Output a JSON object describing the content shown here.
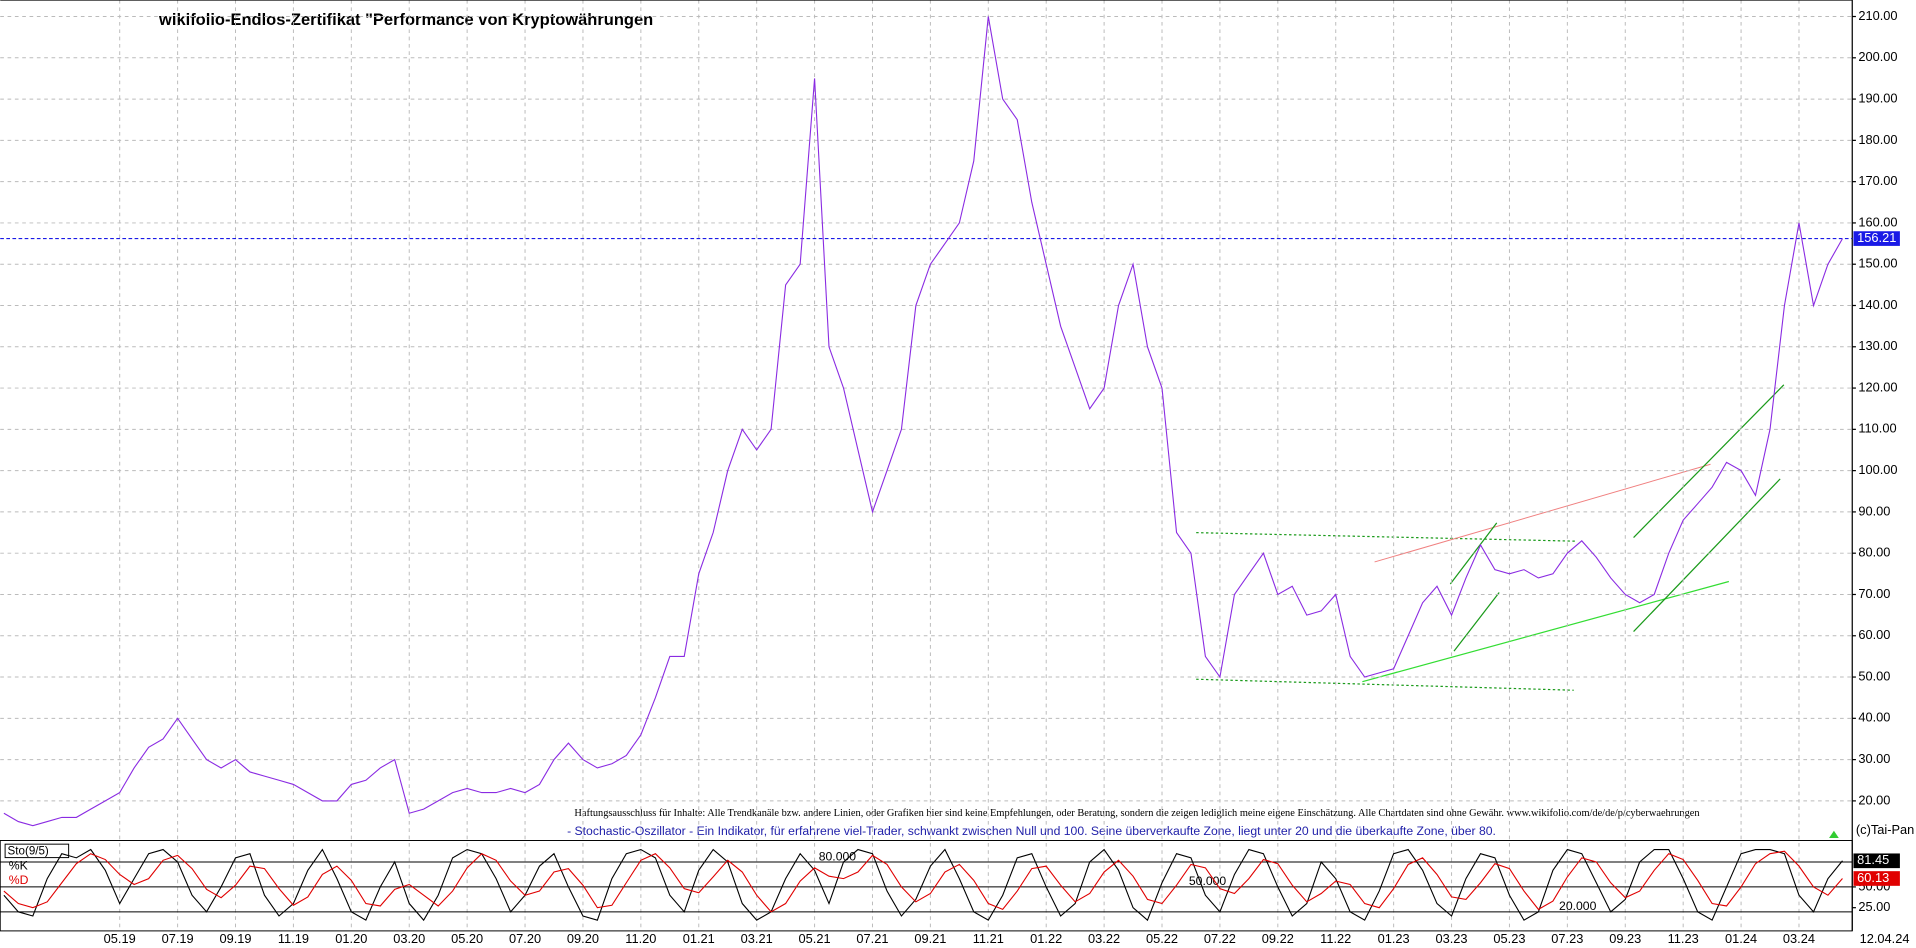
{
  "chart_data": [
    {
      "type": "line",
      "title": "wikifolio-Endlos-Zertifikat \"Performance von Kryptowährungen",
      "disclaimer": "Haftungsausschluss für Inhalte: Alle Trendkanäle bzw. andere Linien, oder Grafiken hier sind keine Empfehlungen, oder Beratung, sondern die zeigen lediglich meine eigene Einschätzung. Alle Chartdaten sind ohne Gewähr. www.wikifolio.com/de/de/p/cyberwaehrungen",
      "copyright": "(c)Tai-Pan",
      "last_date": "12.04.24",
      "categories": [
        null,
        null,
        null,
        null,
        null,
        null,
        null,
        null,
        "05.19",
        null,
        null,
        null,
        "07.19",
        null,
        null,
        null,
        "09.19",
        null,
        null,
        null,
        "11.19",
        null,
        null,
        null,
        "01.20",
        null,
        null,
        null,
        "03.20",
        null,
        null,
        null,
        "05.20",
        null,
        null,
        null,
        "07.20",
        null,
        null,
        null,
        "09.20",
        null,
        null,
        null,
        "11.20",
        null,
        null,
        null,
        "01.21",
        null,
        null,
        null,
        "03.21",
        null,
        null,
        null,
        "05.21",
        null,
        null,
        null,
        "07.21",
        null,
        null,
        null,
        "09.21",
        null,
        null,
        null,
        "11.21",
        null,
        null,
        null,
        "01.22",
        null,
        null,
        null,
        "03.22",
        null,
        null,
        null,
        "05.22",
        null,
        null,
        null,
        "07.22",
        null,
        null,
        null,
        "09.22",
        null,
        null,
        null,
        "11.22",
        null,
        null,
        null,
        "01.23",
        null,
        null,
        null,
        "03.23",
        null,
        null,
        null,
        "05.23",
        null,
        null,
        null,
        "07.23",
        null,
        null,
        null,
        "09.23",
        null,
        null,
        null,
        "11.23",
        null,
        null,
        null,
        "01.24",
        null,
        null,
        null,
        "03.24",
        null,
        null,
        null
      ],
      "series": [
        {
          "color": "#8a2be2",
          "values": [
            17,
            15,
            14,
            15,
            16,
            16,
            18,
            20,
            22,
            28,
            33,
            35,
            40,
            35,
            30,
            28,
            30,
            27,
            26,
            25,
            24,
            22,
            20,
            20,
            24,
            25,
            28,
            30,
            17,
            18,
            20,
            22,
            23,
            22,
            22,
            23,
            22,
            24,
            30,
            34,
            30,
            28,
            29,
            31,
            36,
            45,
            55,
            55,
            75,
            85,
            100,
            110,
            105,
            110,
            145,
            150,
            195,
            130,
            120,
            105,
            90,
            100,
            110,
            140,
            150,
            155,
            160,
            175,
            210,
            190,
            185,
            165,
            150,
            135,
            125,
            115,
            120,
            140,
            150,
            130,
            120,
            85,
            80,
            55,
            50,
            70,
            75,
            80,
            70,
            72,
            65,
            66,
            70,
            55,
            50,
            51,
            52,
            60,
            68,
            72,
            65,
            74,
            82,
            76,
            75,
            76,
            74,
            75,
            80,
            83,
            79,
            74,
            70,
            68,
            70,
            80,
            88,
            92,
            96,
            102,
            100,
            94,
            110,
            140,
            160,
            140,
            150,
            156.21
          ]
        }
      ],
      "current_price": {
        "value": 156.21,
        "label": "156.21"
      },
      "current_price_color": "#1a1ae6",
      "ylim": [
        11,
        214
      ],
      "yticks": [
        {
          "value": 20,
          "label": "20.00"
        },
        {
          "value": 30,
          "label": "30.00"
        },
        {
          "value": 40,
          "label": "40.00"
        },
        {
          "value": 50,
          "label": "50.00"
        },
        {
          "value": 60,
          "label": "60.00"
        },
        {
          "value": 70,
          "label": "70.00"
        },
        {
          "value": 80,
          "label": "80.00"
        },
        {
          "value": 90,
          "label": "90.00"
        },
        {
          "value": 100,
          "label": "100.00"
        },
        {
          "value": 110,
          "label": "110.00"
        },
        {
          "value": 120,
          "label": "120.00"
        },
        {
          "value": 130,
          "label": "130.00"
        },
        {
          "value": 140,
          "label": "140.00"
        },
        {
          "value": 150,
          "label": "150.00"
        },
        {
          "value": 160,
          "label": "160.00"
        },
        {
          "value": 170,
          "label": "170.00"
        },
        {
          "value": 180,
          "label": "180.00"
        },
        {
          "value": 190,
          "label": "190.00"
        },
        {
          "value": 200,
          "label": "200.00"
        },
        {
          "value": 210,
          "label": "210.00"
        }
      ],
      "grid": true
    },
    {
      "type": "line",
      "indicator_label": "Sto(9/5)",
      "description": "- Stochastic-Oszillator - Ein Indikator, für erfahrene viel-Trader, schwankt zwischen Null und 100. Seine überverkaufte Zone, liegt unter 20 und die überkaufte Zone, über 80.",
      "series": [
        {
          "name": "%K",
          "color": "#000000",
          "last_label": "81.45",
          "values": [
            40,
            20,
            15,
            60,
            90,
            85,
            95,
            70,
            30,
            60,
            90,
            95,
            80,
            40,
            20,
            50,
            85,
            90,
            40,
            15,
            30,
            70,
            95,
            60,
            20,
            10,
            50,
            80,
            30,
            10,
            40,
            85,
            95,
            90,
            60,
            20,
            40,
            75,
            90,
            50,
            15,
            10,
            60,
            90,
            95,
            85,
            40,
            20,
            70,
            95,
            80,
            30,
            10,
            20,
            60,
            90,
            70,
            30,
            80,
            95,
            90,
            45,
            15,
            35,
            75,
            95,
            60,
            20,
            10,
            40,
            85,
            90,
            50,
            15,
            30,
            80,
            95,
            70,
            25,
            10,
            55,
            90,
            85,
            40,
            20,
            65,
            95,
            90,
            50,
            15,
            30,
            80,
            60,
            20,
            10,
            45,
            90,
            95,
            70,
            30,
            15,
            60,
            90,
            85,
            40,
            10,
            20,
            70,
            95,
            90,
            55,
            20,
            35,
            80,
            95,
            95,
            60,
            20,
            10,
            50,
            90,
            95,
            95,
            90,
            40,
            20,
            60,
            81.45
          ]
        },
        {
          "name": "%D",
          "color": "#e00000",
          "last_label": "60.13",
          "values": [
            45,
            30,
            25,
            32,
            55,
            78,
            90,
            83,
            65,
            53,
            60,
            82,
            88,
            72,
            47,
            37,
            52,
            75,
            72,
            48,
            28,
            38,
            65,
            75,
            58,
            30,
            27,
            47,
            53,
            40,
            27,
            45,
            73,
            90,
            82,
            57,
            40,
            45,
            68,
            72,
            52,
            25,
            28,
            55,
            82,
            90,
            73,
            48,
            43,
            62,
            82,
            68,
            40,
            20,
            30,
            57,
            73,
            63,
            60,
            68,
            88,
            77,
            50,
            32,
            42,
            68,
            77,
            58,
            30,
            23,
            45,
            72,
            75,
            52,
            32,
            42,
            68,
            82,
            63,
            35,
            30,
            52,
            77,
            73,
            48,
            42,
            60,
            83,
            78,
            52,
            32,
            42,
            57,
            53,
            30,
            25,
            48,
            77,
            85,
            65,
            38,
            35,
            55,
            78,
            72,
            45,
            23,
            33,
            62,
            85,
            80,
            55,
            37,
            45,
            70,
            90,
            83,
            58,
            30,
            27,
            50,
            78,
            90,
            93,
            75,
            50,
            40,
            60.13
          ]
        }
      ],
      "levels": [
        {
          "value": 80,
          "label": "80.000"
        },
        {
          "value": 50,
          "label": "50.000"
        },
        {
          "value": 20,
          "label": "20.000"
        }
      ],
      "ylim": [
        0,
        100
      ],
      "yticks": [
        {
          "value": 25,
          "label": "25.00"
        },
        {
          "value": 50,
          "label": "50.00"
        }
      ]
    }
  ]
}
